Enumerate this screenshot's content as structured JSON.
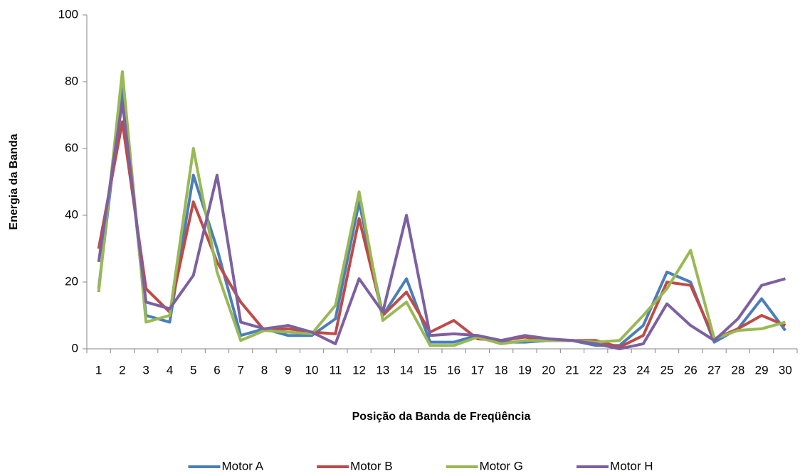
{
  "chart_data": {
    "type": "line",
    "x_label": "Posição da Banda de Freqüência",
    "y_label": "Energia da Banda",
    "categories": [
      "1",
      "2",
      "3",
      "4",
      "5",
      "6",
      "7",
      "8",
      "9",
      "10",
      "11",
      "12",
      "13",
      "14",
      "15",
      "16",
      "17",
      "18",
      "19",
      "20",
      "21",
      "22",
      "23",
      "24",
      "25",
      "26",
      "27",
      "28",
      "29",
      "30"
    ],
    "ylim": [
      0,
      100
    ],
    "yticks": [
      0,
      20,
      40,
      60,
      80,
      100
    ],
    "grid": false,
    "legend": "bottom",
    "series": [
      {
        "name": "Motor A",
        "color": "#4a7ebb",
        "values": [
          18,
          78,
          10,
          8,
          52,
          30,
          4,
          6,
          4,
          4,
          9,
          44,
          10,
          21,
          2,
          2,
          4,
          2,
          2,
          2.5,
          2.5,
          1,
          1,
          7,
          23,
          20,
          2,
          6,
          15,
          5.5
        ]
      },
      {
        "name": "Motor B",
        "color": "#be4b48",
        "values": [
          30,
          68,
          18,
          11,
          44,
          26,
          14,
          5.5,
          6,
          5,
          4.5,
          39,
          10,
          17,
          5,
          8.5,
          3,
          2.5,
          3.5,
          2.5,
          2.5,
          2.5,
          0.5,
          4,
          20,
          19,
          3,
          6,
          10,
          7
        ]
      },
      {
        "name": "Motor G",
        "color": "#98b954",
        "values": [
          17,
          83,
          8,
          10,
          60,
          23,
          2.5,
          5.5,
          5,
          4.5,
          13,
          47,
          8.5,
          14,
          1,
          1,
          3.5,
          1.5,
          2.5,
          2.5,
          2.5,
          2,
          2.5,
          10,
          18,
          29.5,
          3,
          5.5,
          6,
          8
        ]
      },
      {
        "name": "Motor H",
        "color": "#7d60a0",
        "values": [
          26,
          74,
          14,
          12,
          22,
          52,
          8,
          6,
          7,
          5,
          1.5,
          21,
          11,
          40,
          4,
          4.5,
          4,
          2.5,
          4,
          3,
          2.5,
          1.5,
          0,
          1.5,
          13.5,
          7,
          2.5,
          9,
          19,
          21
        ]
      }
    ]
  }
}
